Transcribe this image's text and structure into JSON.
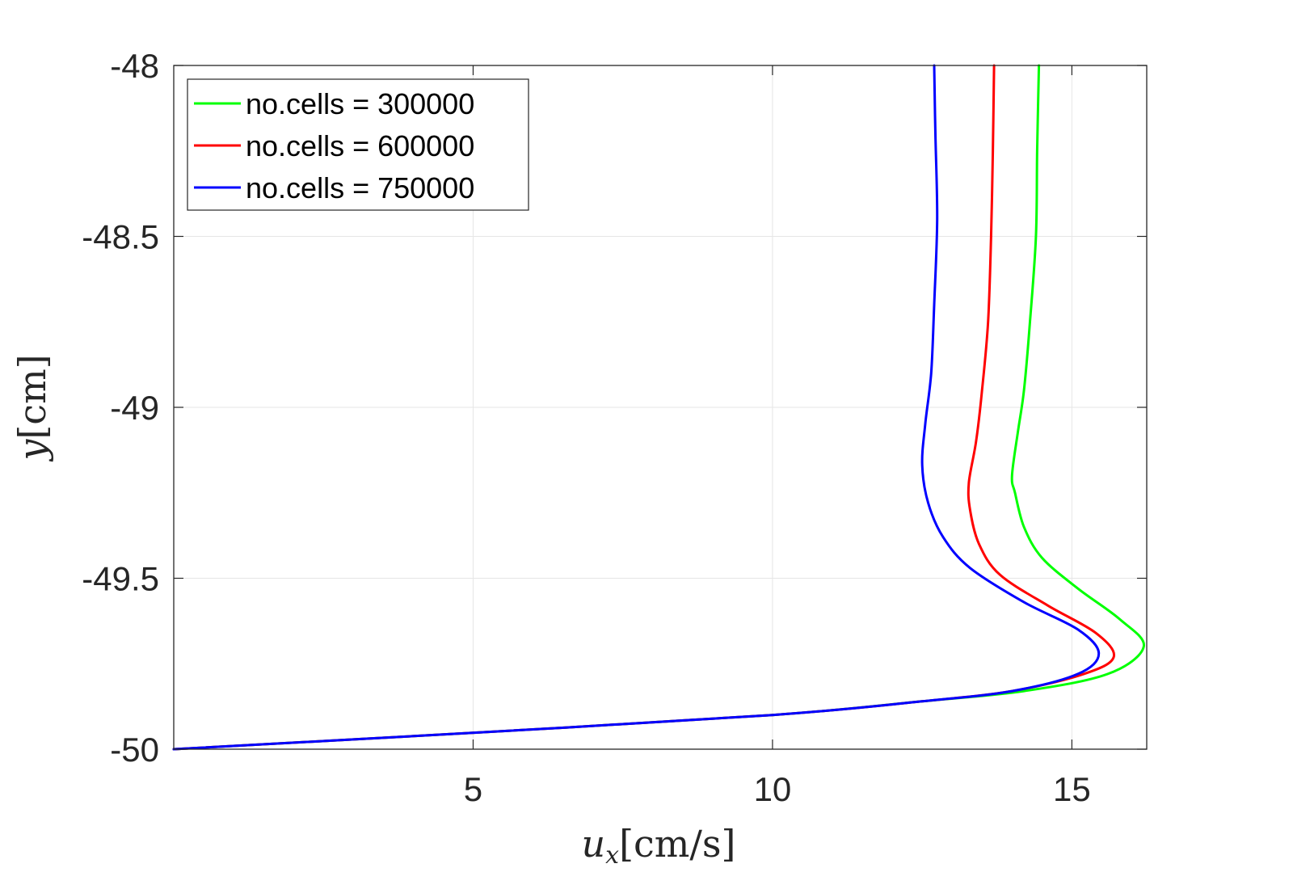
{
  "chart_data": {
    "type": "line",
    "title": "",
    "xlabel": "u_x[cm/s]",
    "xlabel_main": "u",
    "xlabel_sub": "x",
    "xlabel_units": "[cm/s]",
    "ylabel": "y[cm]",
    "ylabel_main": "y",
    "ylabel_units": "[cm]",
    "xlim": [
      0,
      16.25
    ],
    "ylim": [
      -50,
      -48
    ],
    "xticks": [
      5,
      10,
      15
    ],
    "xtick_labels": [
      "5",
      "10",
      "15"
    ],
    "yticks": [
      -48,
      -48.5,
      -49,
      -49.5,
      -50
    ],
    "ytick_labels": [
      "-48",
      "-48.5",
      "-49",
      "-49.5",
      "-50"
    ],
    "grid": true,
    "legend_position": "top-left",
    "series": [
      {
        "name": "no.cells = 300000",
        "color": "#00ff00",
        "x": [
          0,
          5.2,
          10,
          12.5,
          14.2,
          15.6,
          16.2,
          15.8,
          15.1,
          14.5,
          14.2,
          14.05,
          14.0,
          14.1,
          14.2,
          14.3,
          14.4,
          14.42,
          14.45
        ],
        "y": [
          -50,
          -49.95,
          -49.9,
          -49.86,
          -49.83,
          -49.78,
          -49.7,
          -49.62,
          -49.53,
          -49.44,
          -49.35,
          -49.25,
          -49.2,
          -49.07,
          -48.95,
          -48.75,
          -48.5,
          -48.25,
          -48
        ]
      },
      {
        "name": "no.cells = 600000",
        "color": "#ff0000",
        "x": [
          0,
          5.2,
          10,
          12.5,
          14.0,
          15.2,
          15.7,
          15.4,
          14.6,
          13.8,
          13.45,
          13.3,
          13.28,
          13.4,
          13.5,
          13.6,
          13.65,
          13.68,
          13.7
        ],
        "y": [
          -50,
          -49.95,
          -49.9,
          -49.86,
          -49.83,
          -49.78,
          -49.73,
          -49.66,
          -49.58,
          -49.49,
          -49.4,
          -49.3,
          -49.22,
          -49.1,
          -48.95,
          -48.75,
          -48.5,
          -48.25,
          -48
        ]
      },
      {
        "name": "no.cells = 750000",
        "color": "#0000ff",
        "x": [
          0,
          5.2,
          10,
          12.5,
          14.0,
          15.1,
          15.45,
          15.1,
          14.2,
          13.3,
          12.85,
          12.6,
          12.5,
          12.55,
          12.65,
          12.7,
          12.75,
          12.72,
          12.7
        ],
        "y": [
          -50,
          -49.95,
          -49.9,
          -49.86,
          -49.83,
          -49.78,
          -49.72,
          -49.65,
          -49.57,
          -49.47,
          -49.38,
          -49.28,
          -49.17,
          -49.05,
          -48.9,
          -48.7,
          -48.45,
          -48.2,
          -48
        ]
      }
    ]
  }
}
